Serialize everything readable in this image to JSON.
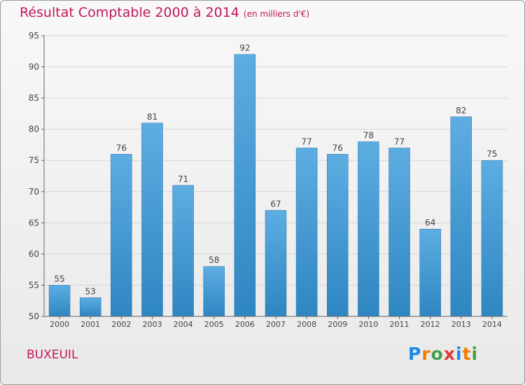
{
  "title": "Résultat Comptable 2000 à 2014",
  "unit": "(en milliers d'€)",
  "location": "BUXEUIL",
  "logo_text": "Proxiti",
  "colors": {
    "accent": "#c2185b",
    "bar_top": "#5dade2",
    "bar_bottom": "#2e86c1"
  },
  "chart_data": {
    "type": "bar",
    "title": "Résultat Comptable 2000 à 2014",
    "xlabel": "",
    "ylabel": "(en milliers d'€)",
    "categories": [
      "2000",
      "2001",
      "2002",
      "2003",
      "2004",
      "2005",
      "2006",
      "2007",
      "2008",
      "2009",
      "2010",
      "2011",
      "2012",
      "2013",
      "2014"
    ],
    "values": [
      55,
      53,
      76,
      81,
      71,
      58,
      92,
      67,
      77,
      76,
      78,
      77,
      64,
      82,
      75
    ],
    "ylim": [
      50,
      95
    ],
    "yticks": [
      50,
      55,
      60,
      65,
      70,
      75,
      80,
      85,
      90,
      95
    ],
    "grid": true
  }
}
